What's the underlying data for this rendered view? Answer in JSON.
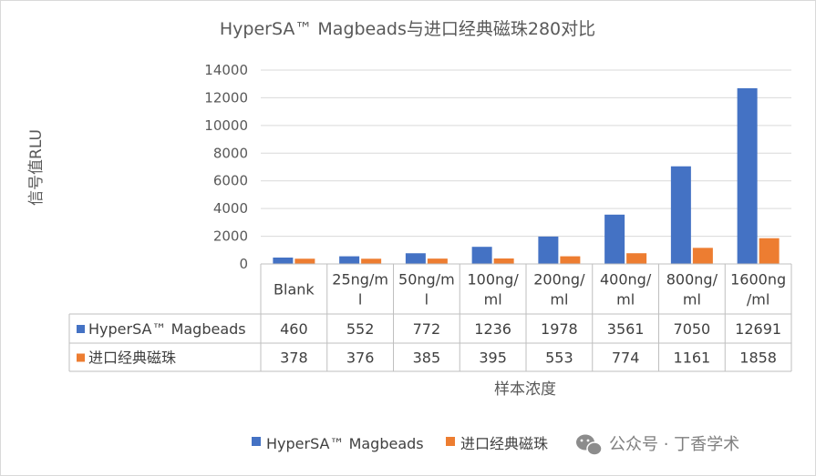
{
  "chart_data": {
    "type": "bar",
    "title": "HyperSA™ Magbeads与进口经典磁珠280对比",
    "xlabel": "样本浓度",
    "ylabel": "信号值RLU",
    "ylim": [
      0,
      14000
    ],
    "yticks": [
      0,
      2000,
      4000,
      6000,
      8000,
      10000,
      12000,
      14000
    ],
    "grid": true,
    "legend_position": "bottom",
    "categories": [
      [
        "Blank"
      ],
      [
        "25ng/m",
        "l"
      ],
      [
        "50ng/m",
        "l"
      ],
      [
        "100ng/",
        "ml"
      ],
      [
        "200ng/",
        "ml"
      ],
      [
        "400ng/",
        "ml"
      ],
      [
        "800ng/",
        "ml"
      ],
      [
        "1600ng",
        "/ml"
      ]
    ],
    "series": [
      {
        "name": "HyperSA™ Magbeads",
        "color": "#4472c4",
        "values": [
          460,
          552,
          772,
          1236,
          1978,
          3561,
          7050,
          12691
        ]
      },
      {
        "name": "进口经典磁珠",
        "color": "#ed7d31",
        "values": [
          378,
          376,
          385,
          395,
          553,
          774,
          1161,
          1858
        ]
      }
    ]
  },
  "watermark": {
    "icon": "wechat-icon",
    "text": "公众号 · 丁香学术"
  }
}
